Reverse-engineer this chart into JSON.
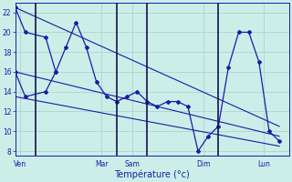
{
  "background_color": "#cceee8",
  "grid_color": "#aad4cc",
  "line_color": "#1a1aaa",
  "xlabel": "Température (°c)",
  "ylim": [
    7.5,
    23
  ],
  "yticks": [
    8,
    10,
    12,
    14,
    16,
    18,
    20,
    22
  ],
  "ytick_labels": [
    "8",
    "10",
    "12",
    "14",
    "16",
    "18",
    "20",
    "22"
  ],
  "day_labels": [
    "Ven",
    "Mar",
    "Sam",
    "Dim",
    "Lun"
  ],
  "day_x": [
    0.5,
    8.5,
    11.5,
    18.5,
    24.5
  ],
  "vline_x": [
    2,
    10,
    13,
    20
  ],
  "xlim": [
    0,
    27
  ],
  "main_x": [
    0,
    1,
    3,
    4,
    5,
    6,
    7,
    8,
    9,
    10,
    11,
    12,
    13,
    14,
    15,
    16,
    17,
    18,
    19,
    20,
    21,
    22,
    23,
    24,
    25,
    26
  ],
  "main_y": [
    22.5,
    20,
    19.5,
    16.0,
    18.5,
    21.0,
    18.5,
    15.0,
    13.5,
    13.0,
    13.5,
    14.0,
    13.0,
    12.5,
    13.0,
    13.0,
    12.5,
    8.0,
    9.5,
    10.5,
    16.5,
    20.0,
    20.0,
    17.0,
    10.0,
    9.0
  ],
  "line2_x": [
    0,
    1,
    3,
    4
  ],
  "line2_y": [
    16.0,
    13.5,
    14.0,
    16.0
  ],
  "trend1_x": [
    0,
    26
  ],
  "trend1_y": [
    22.5,
    10.5
  ],
  "trend2_x": [
    0,
    26
  ],
  "trend2_y": [
    16.0,
    9.5
  ],
  "trend3_x": [
    0,
    26
  ],
  "trend3_y": [
    13.5,
    8.5
  ]
}
